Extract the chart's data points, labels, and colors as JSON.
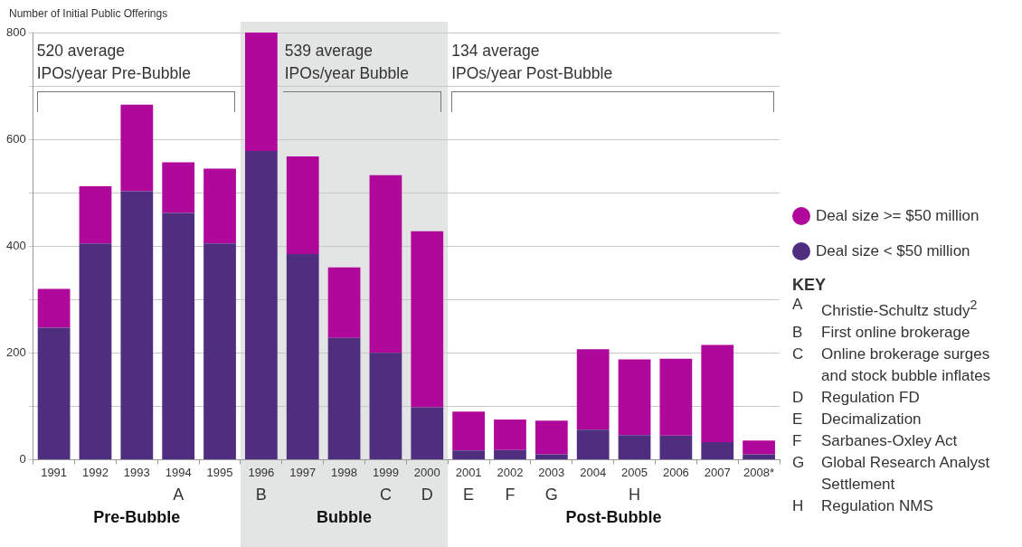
{
  "chart_data": {
    "type": "bar",
    "stacked": true,
    "ylabel": "Number of Initial Public Offerings",
    "categories": [
      "1991",
      "1992",
      "1993",
      "1994",
      "1995",
      "1996",
      "1997",
      "1998",
      "1999",
      "2000",
      "2001",
      "2002",
      "2003",
      "2004",
      "2005",
      "2006",
      "2007",
      "2008*"
    ],
    "series": [
      {
        "name": "Deal size < $50 million",
        "color": "#4f2d7f",
        "values": [
          247,
          405,
          503,
          462,
          405,
          578,
          385,
          228,
          200,
          98,
          17,
          18,
          10,
          56,
          46,
          45,
          33,
          10
        ]
      },
      {
        "name": "Deal size >= $50 million",
        "color": "#b0089b",
        "values": [
          73,
          107,
          162,
          95,
          140,
          222,
          183,
          132,
          333,
          330,
          73,
          57,
          63,
          151,
          142,
          144,
          182,
          26
        ]
      }
    ],
    "ylim": [
      0,
      800
    ],
    "yticks": [
      0,
      {
        "value": 100,
        "label": null
      },
      200,
      {
        "value": 300,
        "label": null
      },
      400,
      {
        "value": 500,
        "label": null
      },
      600,
      {
        "value": 700,
        "label": null
      },
      800
    ],
    "grid": "y",
    "legend": "right",
    "bands": [
      {
        "axis": "x",
        "from": "1996",
        "to": "2000",
        "label": "Bubble",
        "color": "#e3e4e4"
      }
    ],
    "annotations": [
      "520 average\nIPOs/year Pre-Bubble",
      "539 average\nIPOs/year Bubble",
      "134 average\nIPOs/year Post-Bubble",
      "Pre-Bubble",
      "Post-Bubble",
      "KEY",
      "A\tChristie-Schultz study$^{2}$",
      "B\tFirst online brokerage",
      "C\tOnline brokerage surges\nand stock bubble inflates",
      "D\tRegulation FD",
      "E\tDecimalization",
      "F\tSarbanes-Oxley Act",
      "G\tGlobal Research Analyst\nSettlement",
      "H\tRegulation NMS",
      "A",
      "B",
      "C",
      "D",
      "E",
      "F",
      "G",
      "H"
    ]
  }
}
